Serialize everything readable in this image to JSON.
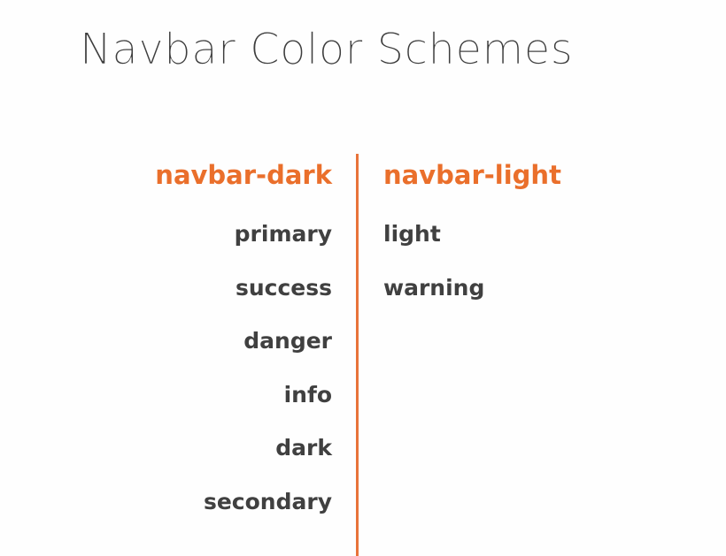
{
  "slide": {
    "title": "Navbar Color Schemes",
    "accent_color": "#e8733a",
    "columns": [
      {
        "heading": "navbar-dark",
        "items": [
          "primary",
          "success",
          "danger",
          "info",
          "dark",
          "secondary"
        ]
      },
      {
        "heading": "navbar-light",
        "items": [
          "light",
          "warning"
        ]
      }
    ]
  }
}
